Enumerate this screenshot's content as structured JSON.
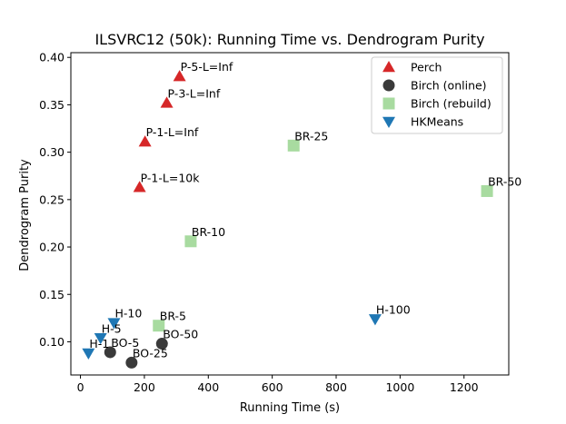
{
  "chart_data": {
    "type": "scatter",
    "title": "ILSVRC12 (50k): Running Time vs. Dendrogram Purity",
    "xlabel": "Running Time (s)",
    "ylabel": "Dendrogram Purity",
    "xlim": [
      -30,
      1340
    ],
    "ylim": [
      0.065,
      0.405
    ],
    "xticks": [
      0,
      200,
      400,
      600,
      800,
      1000,
      1200
    ],
    "yticks": [
      0.1,
      0.15,
      0.2,
      0.25,
      0.3,
      0.35,
      0.4
    ],
    "xtick_labels": [
      "0",
      "200",
      "400",
      "600",
      "800",
      "1000",
      "1200"
    ],
    "ytick_labels": [
      "0.10",
      "0.15",
      "0.20",
      "0.25",
      "0.30",
      "0.35",
      "0.40"
    ],
    "grid": false,
    "legend_position": "top-right",
    "series": [
      {
        "name": "Perch",
        "marker": "triangle-up",
        "color": "#d62728",
        "points": [
          {
            "x": 310,
            "y": 0.38,
            "label": "P-5-L=Inf"
          },
          {
            "x": 270,
            "y": 0.352,
            "label": "P-3-L=Inf"
          },
          {
            "x": 202,
            "y": 0.311,
            "label": "P-1-L=Inf"
          },
          {
            "x": 185,
            "y": 0.263,
            "label": "P-1-L=10k"
          }
        ]
      },
      {
        "name": "Birch (online)",
        "marker": "circle",
        "color": "#3a3a3a",
        "points": [
          {
            "x": 93,
            "y": 0.089,
            "label": "BO-5"
          },
          {
            "x": 160,
            "y": 0.078,
            "label": "BO-25"
          },
          {
            "x": 255,
            "y": 0.098,
            "label": "BO-50"
          }
        ]
      },
      {
        "name": "Birch (rebuild)",
        "marker": "square",
        "color": "#a8dba0",
        "points": [
          {
            "x": 245,
            "y": 0.117,
            "label": "BR-5"
          },
          {
            "x": 345,
            "y": 0.206,
            "label": "BR-10"
          },
          {
            "x": 667,
            "y": 0.307,
            "label": "BR-25"
          },
          {
            "x": 1272,
            "y": 0.259,
            "label": "BR-50"
          }
        ]
      },
      {
        "name": "HKMeans",
        "marker": "triangle-down",
        "color": "#1f77b4",
        "points": [
          {
            "x": 25,
            "y": 0.088,
            "label": "H-1"
          },
          {
            "x": 63,
            "y": 0.104,
            "label": "H-5"
          },
          {
            "x": 105,
            "y": 0.12,
            "label": "H-10"
          },
          {
            "x": 922,
            "y": 0.124,
            "label": "H-100"
          }
        ]
      }
    ]
  }
}
